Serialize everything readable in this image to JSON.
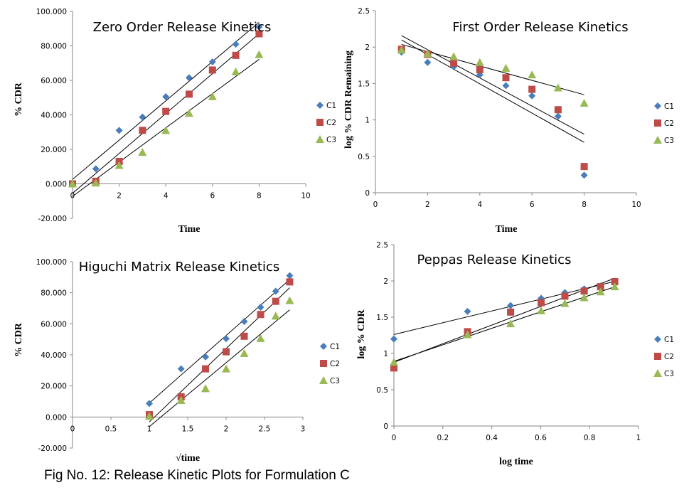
{
  "caption": "Fig No. 12: Release Kinetic Plots for Formulation C",
  "colors": {
    "C1": "#4a7ebb",
    "C2": "#be4b48",
    "C3": "#98b954",
    "trendline": "#000000",
    "axis": "#868686"
  },
  "chart_data": [
    {
      "type": "scatter",
      "title": "Zero Order Release Kinetics",
      "xlabel": "Time",
      "ylabel": "% CDR",
      "xlim": [
        0,
        10
      ],
      "ylim": [
        -20,
        100
      ],
      "xticks": [
        0,
        2,
        4,
        6,
        8,
        10
      ],
      "xtick_labels": [
        "0",
        "2",
        "4",
        "6",
        "8",
        "10"
      ],
      "yticks": [
        -20,
        0,
        20,
        40,
        60,
        80,
        100
      ],
      "ytick_labels": [
        "-20.000",
        "0.000",
        "20.000",
        "40.000",
        "60.000",
        "80.000",
        "100.000"
      ],
      "legend": "right",
      "trendlines": "linear",
      "x": [
        0,
        1,
        2,
        3,
        4,
        5,
        6,
        7,
        8
      ],
      "series": [
        {
          "name": "C1",
          "marker": "diamond",
          "values": [
            0,
            8.7,
            31.0,
            38.7,
            50.5,
            61.5,
            70.7,
            81.0,
            91.0
          ]
        },
        {
          "name": "C2",
          "marker": "square",
          "values": [
            0,
            1.5,
            13.0,
            31.0,
            42.0,
            52.0,
            66.0,
            74.5,
            87.0
          ]
        },
        {
          "name": "C3",
          "marker": "triangle",
          "values": [
            0,
            0.5,
            10.7,
            18.3,
            31.0,
            41.0,
            50.6,
            65.0,
            75.0
          ]
        }
      ]
    },
    {
      "type": "scatter",
      "title": "First Order Release Kinetics",
      "xlabel": "Time",
      "ylabel": "log % CDR Remaining",
      "xlim": [
        0,
        10
      ],
      "ylim": [
        0,
        2.5
      ],
      "xticks": [
        0,
        2,
        4,
        6,
        8,
        10
      ],
      "xtick_labels": [
        "0",
        "2",
        "4",
        "6",
        "8",
        "10"
      ],
      "yticks": [
        0,
        0.5,
        1,
        1.5,
        2,
        2.5
      ],
      "ytick_labels": [
        "0",
        "0.5",
        "1",
        "1.5",
        "2",
        "2.5"
      ],
      "legend": "right",
      "trendlines": "linear",
      "x": [
        1,
        2,
        3,
        4,
        5,
        6,
        7,
        8
      ],
      "series": [
        {
          "name": "C1",
          "marker": "diamond",
          "values": [
            1.93,
            1.79,
            1.73,
            1.62,
            1.47,
            1.33,
            1.05,
            0.24
          ]
        },
        {
          "name": "C2",
          "marker": "square",
          "values": [
            1.97,
            1.9,
            1.78,
            1.69,
            1.58,
            1.42,
            1.14,
            0.36
          ]
        },
        {
          "name": "C3",
          "marker": "triangle",
          "values": [
            1.96,
            1.91,
            1.87,
            1.79,
            1.71,
            1.62,
            1.44,
            1.23
          ]
        }
      ]
    },
    {
      "type": "scatter",
      "title": "Higuchi Matrix Release Kinetics",
      "xlabel": "√time",
      "ylabel": "% CDR",
      "xlim": [
        0,
        3
      ],
      "ylim": [
        -20,
        100
      ],
      "xticks": [
        0,
        0.5,
        1,
        1.5,
        2,
        2.5,
        3
      ],
      "xtick_labels": [
        "0",
        "0.5",
        "1",
        "1.5",
        "2",
        "2.5",
        "3"
      ],
      "yticks": [
        -20,
        0,
        20,
        40,
        60,
        80,
        100
      ],
      "ytick_labels": [
        "-20.000",
        "0.000",
        "20.000",
        "40.000",
        "60.000",
        "80.000",
        "100.000"
      ],
      "legend": "right",
      "trendlines": "linear",
      "x": [
        1,
        1.414,
        1.732,
        2,
        2.236,
        2.449,
        2.646,
        2.828
      ],
      "series": [
        {
          "name": "C1",
          "marker": "diamond",
          "values": [
            8.7,
            31.0,
            38.7,
            50.5,
            61.5,
            70.7,
            81.0,
            91.0
          ]
        },
        {
          "name": "C2",
          "marker": "square",
          "values": [
            1.5,
            13.0,
            31.0,
            42.0,
            52.0,
            66.0,
            74.5,
            87.0
          ]
        },
        {
          "name": "C3",
          "marker": "triangle",
          "values": [
            0.5,
            10.7,
            18.3,
            31.0,
            41.0,
            50.6,
            65.0,
            75.0
          ]
        }
      ]
    },
    {
      "type": "scatter",
      "title": "Peppas Release Kinetics",
      "xlabel": "log time",
      "ylabel": "log % CDR",
      "xlim": [
        0,
        1
      ],
      "ylim": [
        0,
        2.5
      ],
      "xticks": [
        0,
        0.2,
        0.4,
        0.6,
        0.8,
        1
      ],
      "xtick_labels": [
        "0",
        "0.2",
        "0.4",
        "0.6",
        "0.8",
        "1"
      ],
      "yticks": [
        0,
        0.5,
        1,
        1.5,
        2,
        2.5
      ],
      "ytick_labels": [
        "0",
        "0.5",
        "1",
        "1.5",
        "2",
        "2.5"
      ],
      "legend": "right",
      "trendlines": "linear",
      "x": [
        0,
        0.301,
        0.477,
        0.602,
        0.699,
        0.778,
        0.845,
        0.903
      ],
      "series": [
        {
          "name": "C1",
          "marker": "diamond",
          "values": [
            1.2,
            1.58,
            1.66,
            1.76,
            1.84,
            1.89,
            1.93,
            1.96
          ]
        },
        {
          "name": "C2",
          "marker": "square",
          "values": [
            0.8,
            1.3,
            1.57,
            1.7,
            1.79,
            1.86,
            1.92,
            1.99
          ]
        },
        {
          "name": "C3",
          "marker": "triangle",
          "values": [
            0.88,
            1.26,
            1.41,
            1.59,
            1.69,
            1.77,
            1.85,
            1.92
          ]
        }
      ]
    }
  ]
}
